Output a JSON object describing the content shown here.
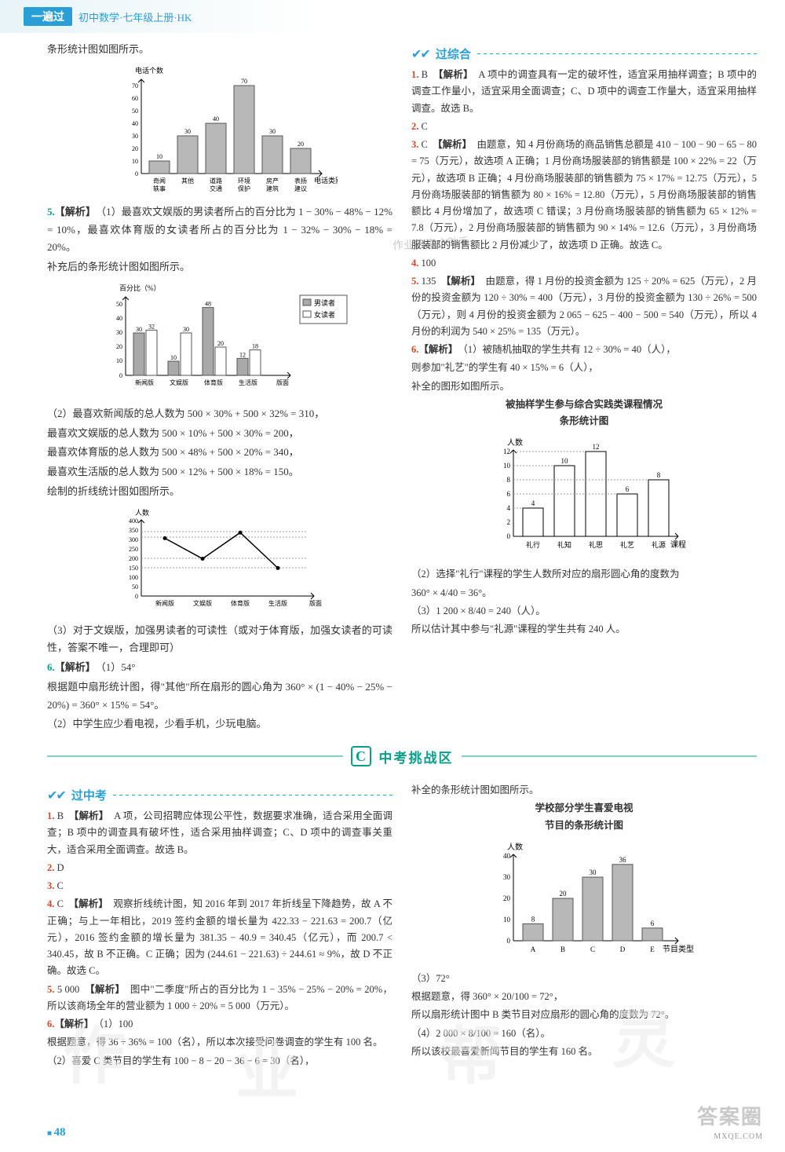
{
  "header": {
    "badge": "一遍过",
    "sub": "初中数学·七年级上册·HK"
  },
  "left": {
    "intro": "条形统计图如图所示。",
    "chart1": {
      "type": "bar",
      "ylabel": "电话个数",
      "xlabel": "电话类别",
      "categories": [
        "奇闻\n轶事",
        "其他",
        "道路\n交通",
        "环境\n保护",
        "房产\n建筑",
        "表扬\n建议"
      ],
      "values": [
        10,
        30,
        40,
        70,
        30,
        20
      ],
      "labels": [
        "10",
        "30",
        "40",
        "70",
        "30",
        "20"
      ],
      "ylim": [
        0,
        70
      ],
      "ytick_step": 10,
      "bar_color": "#b8b8b8",
      "border_color": "#555",
      "axis_color": "#000",
      "label_fontsize": 8
    },
    "q5": {
      "num": "5.",
      "head": "【解析】",
      "p1": "（1）最喜欢文娱版的男读者所占的百分比为 1 − 30% − 48% − 12% = 10%，最喜欢体育版的女读者所占的百分比为 1 − 32% − 30% − 18% = 20%。",
      "p2": "补充后的条形统计图如图所示。",
      "chart2": {
        "type": "grouped-bar",
        "ylabel": "百分比（%）",
        "categories": [
          "新闻版",
          "文娱版",
          "体育版",
          "生活版",
          "版面"
        ],
        "series": [
          {
            "name": "男读者",
            "color": "#a9a9a9",
            "values": [
              30,
              10,
              48,
              12,
              null
            ],
            "labels": [
              "30",
              "10",
              "48",
              "12",
              ""
            ]
          },
          {
            "name": "女读者",
            "color": "#ffffff",
            "values": [
              32,
              30,
              20,
              18,
              null
            ],
            "labels": [
              "32",
              "30",
              "20",
              "18",
              ""
            ]
          }
        ],
        "ylim": [
          0,
          50
        ],
        "ytick_step": 10,
        "border_color": "#555",
        "axis_color": "#000",
        "label_fontsize": 8
      },
      "p3": "（2）最喜欢新闻版的总人数为 500 × 30% + 500 × 32% = 310，",
      "p4": "最喜欢文娱版的总人数为 500 × 10% + 500 × 30% = 200，",
      "p5": "最喜欢体育版的总人数为 500 × 48% + 500 × 20% = 340，",
      "p6": "最喜欢生活版的总人数为 500 × 12% + 500 × 18% = 150。",
      "p7": "绘制的折线统计图如图所示。",
      "chart3": {
        "type": "line",
        "ylabel": "人数",
        "categories": [
          "新闻版",
          "文娱版",
          "体育版",
          "生活版",
          "版面"
        ],
        "values": [
          310,
          200,
          340,
          150
        ],
        "ylim": [
          0,
          400
        ],
        "ytick_step": 50,
        "line_color": "#000",
        "marker": "circle",
        "axis_color": "#000",
        "label_fontsize": 8
      },
      "p8": "（3）对于文娱版，加强男读者的可读性（或对于体育版，加强女读者的可读性，答案不唯一，合理即可）"
    },
    "q6": {
      "num": "6.",
      "head": "【解析】",
      "a": "（1）54°",
      "p1": "根据题中扇形统计图，得\"其他\"所在扇形的圆心角为 360° × (1 − 40% − 25% − 20%) = 360° × 15% = 54°。",
      "p2": "（2）中学生应少看电视，少看手机，少玩电脑。"
    }
  },
  "right": {
    "sec": {
      "title": "过综合"
    },
    "q1": {
      "num": "1.",
      "ans": "B",
      "head": "【解析】",
      "body": "A 项中的调查具有一定的破坏性，适宜采用抽样调查；B 项中的调查工作量小，适宜采用全面调查；C、D 项中的调查工作量大，适宜采用抽样调查。故选 B。"
    },
    "q2": {
      "num": "2.",
      "ans": "C"
    },
    "q3": {
      "num": "3.",
      "ans": "C",
      "head": "【解析】",
      "body": "由题意，知 4 月份商场的商品销售总额是 410 − 100 − 90 − 65 − 80 = 75（万元），故选项 A 正确；1 月份商场服装部的销售额是 100 × 22% = 22（万元），故选项 B 正确；4 月份商场服装部的销售额为 75 × 17% = 12.75（万元），5 月份商场服装部的销售额为 80 × 16% = 12.80（万元），5 月份商场服装部的销售额比 4 月份增加了，故选项 C 错误；3 月份商场服装部的销售额为 65 × 12% = 7.8（万元），2 月份商场服装部的销售额为 90 × 14% = 12.6（万元），3 月份商场服装部的销售额比 2 月份减少了，故选项 D 正确。故选 C。"
    },
    "scribble": "作业检查小助手",
    "q4": {
      "num": "4.",
      "ans": "100"
    },
    "q5r": {
      "num": "5.",
      "ans": "135",
      "head": "【解析】",
      "body": "由题意，得 1 月份的投资金额为 125 ÷ 20% = 625（万元），2 月份的投资金额为 120 ÷ 30% = 400（万元），3 月份的投资金额为 130 ÷ 26% = 500（万元），则 4 月份的投资金额为 2 065 − 625 − 400 − 500 = 540（万元），所以 4 月份的利润为 540 × 25% = 135（万元）。"
    },
    "q6r": {
      "num": "6.",
      "head": "【解析】",
      "p1": "（1）被随机抽取的学生共有 12 ÷ 30% = 40（人），",
      "p2": "则参加\"礼艺\"的学生有 40 × 15% = 6（人），",
      "p3": "补全的图形如图所示。",
      "chartTitle": "被抽样学生参与综合实践类课程情况\n条形统计图",
      "chart": {
        "type": "bar",
        "ylabel": "人数",
        "xlabel": "课程",
        "categories": [
          "礼行",
          "礼知",
          "礼思",
          "礼艺",
          "礼源"
        ],
        "values": [
          4,
          10,
          12,
          6,
          8
        ],
        "labels": [
          "4",
          "10",
          "12",
          "6",
          "8"
        ],
        "ylim": [
          0,
          12
        ],
        "ytick_step": 2,
        "bar_color": "#ffffff",
        "border_color": "#000",
        "axis_color": "#000",
        "label_fontsize": 9
      },
      "p4": "（2）选择\"礼行\"课程的学生人数所对应的扇形圆心角的度数为",
      "frac": "360° × 4/40 = 36°。",
      "p5": "（3）1 200 × 8/40 = 240（人）。",
      "p6": "所以估计其中参与\"礼源\"课程的学生共有 240 人。"
    }
  },
  "zone": {
    "c": "C",
    "title": "中考挑战区"
  },
  "lowL": {
    "sec": {
      "title": "过中考"
    },
    "q1": {
      "num": "1.",
      "ans": "B",
      "head": "【解析】",
      "body": "A 项，公司招聘应体现公平性，数据要求准确，适合采用全面调查；B 项中的调查具有破坏性，适合采用抽样调查；C、D 项中的调查事关重大，适合采用全面调查。故选 B。"
    },
    "q2": {
      "num": "2.",
      "ans": "D"
    },
    "q3": {
      "num": "3.",
      "ans": "C"
    },
    "q4": {
      "num": "4.",
      "ans": "C",
      "head": "【解析】",
      "body": "观察折线统计图，知 2016 年到 2017 年折线呈下降趋势，故 A 不正确；与上一年相比，2019 签约金额的增长量为 422.33 − 221.63 = 200.7（亿元），2016 签约金额的增长量为 381.35 − 40.9 = 340.45（亿元），而 200.7 < 340.45，故 B 不正确。C 正确；因为 (244.61 − 221.63) ÷ 244.61 ≈ 9%，故 D 不正确。故选 C。"
    },
    "q5": {
      "num": "5.",
      "ans": "5 000",
      "head": "【解析】",
      "body": "图中\"二季度\"所占的百分比为 1 − 35% − 25% − 20% = 20%，所以该商场全年的营业额为 1 000 ÷ 20% = 5 000（万元）。"
    },
    "q6": {
      "num": "6.",
      "head": "【解析】",
      "a": "（1）100",
      "p1": "根据题意，得 36 ÷ 36% = 100（名），所以本次接受问卷调查的学生有 100 名。",
      "p2": "（2）喜爱 C 类节目的学生有 100 − 8 − 20 − 36 − 6 = 30（名），"
    }
  },
  "lowR": {
    "p1": "补全的条形统计图如图所示。",
    "chartTitle": "学校部分学生喜爱电视\n节目的条形统计图",
    "chart": {
      "type": "bar",
      "ylabel": "人数",
      "xlabel": "节目类型",
      "categories": [
        "A",
        "B",
        "C",
        "D",
        "E"
      ],
      "values": [
        8,
        20,
        30,
        36,
        6
      ],
      "labels": [
        "8",
        "20",
        "30",
        "36",
        "6"
      ],
      "ylim": [
        0,
        40
      ],
      "ytick_step": 10,
      "bar_color": "#b8b8b8",
      "border_color": "#555",
      "axis_color": "#000",
      "label_fontsize": 9
    },
    "p2": "（3）72°",
    "p3": "根据题意，得 360° × 20/100 = 72°，",
    "p4": "所以扇形统计图中 B 类节目对应扇形的圆心角的度数为 72°。",
    "p5": "（4）2 000 × 8/100 = 160（名）。",
    "p6": "所以该校最喜爱新闻节目的学生有 160 名。"
  },
  "page": "48",
  "watermark": "答案圈",
  "watermark_sub": "MXQE.COM"
}
